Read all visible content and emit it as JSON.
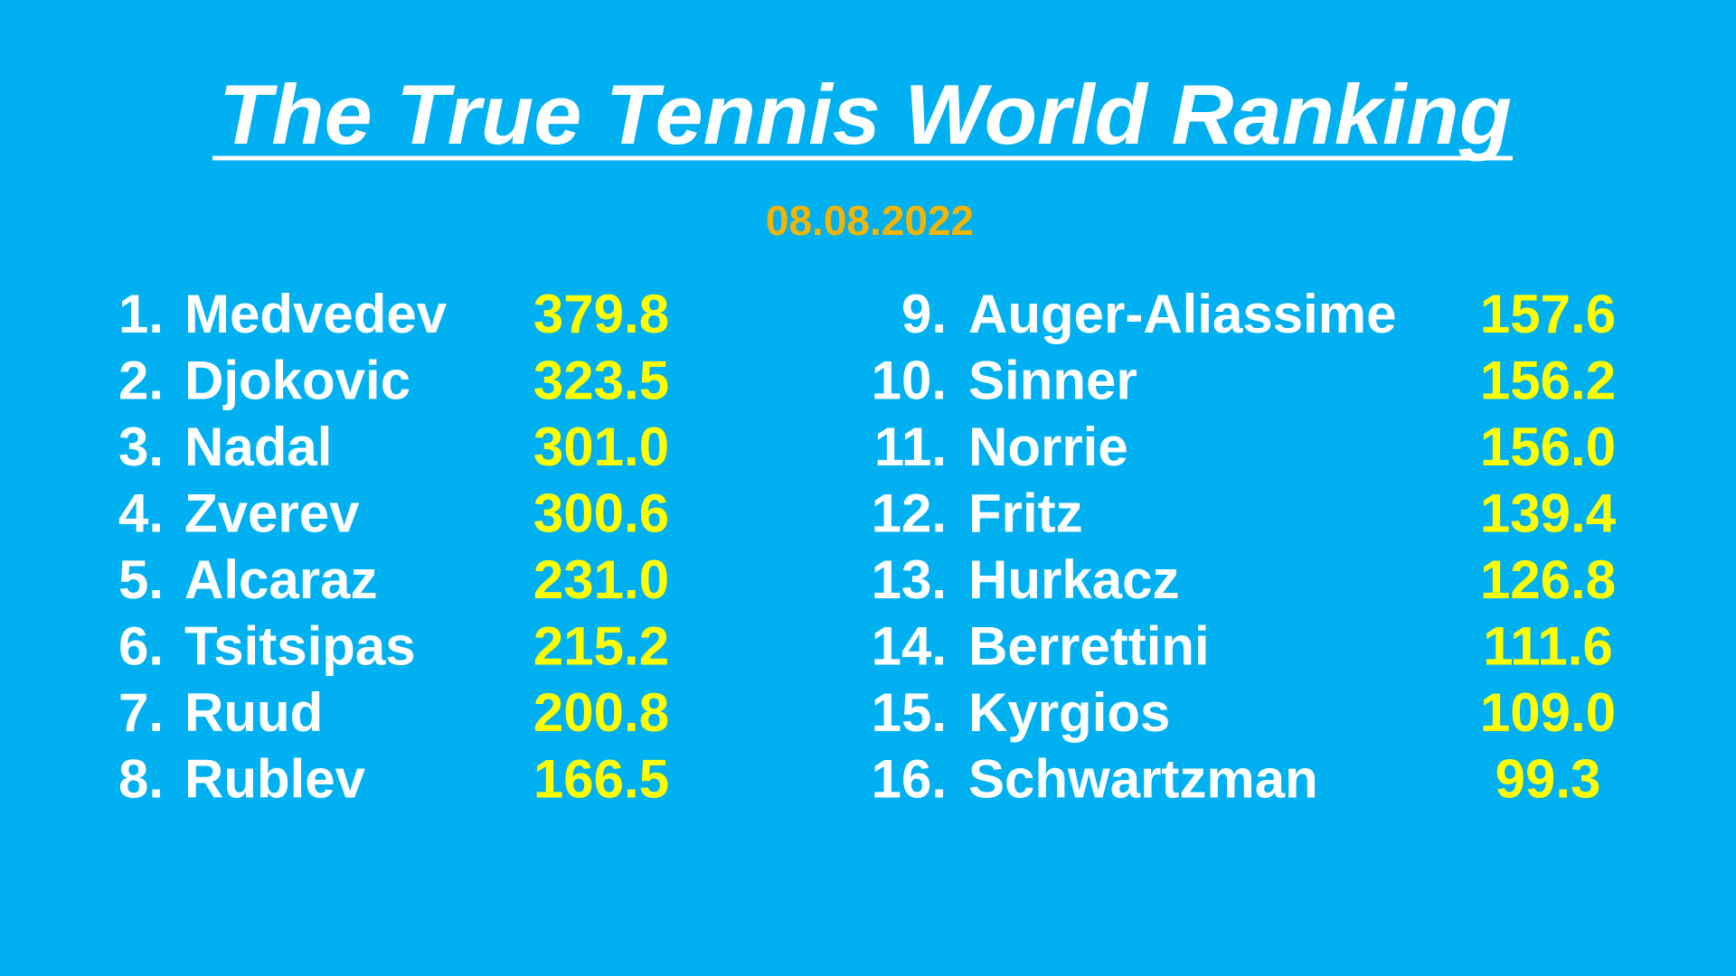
{
  "title": "The True Tennis World Ranking",
  "date": "08.08.2022",
  "rankings": [
    {
      "rank": "1.",
      "name": "Medvedev",
      "points": "379.8"
    },
    {
      "rank": "2.",
      "name": "Djokovic",
      "points": "323.5"
    },
    {
      "rank": "3.",
      "name": "Nadal",
      "points": "301.0"
    },
    {
      "rank": "4.",
      "name": "Zverev",
      "points": "300.6"
    },
    {
      "rank": "5.",
      "name": "Alcaraz",
      "points": "231.0"
    },
    {
      "rank": "6.",
      "name": "Tsitsipas",
      "points": "215.2"
    },
    {
      "rank": "7.",
      "name": "Ruud",
      "points": "200.8"
    },
    {
      "rank": "8.",
      "name": "Rublev",
      "points": "166.5"
    },
    {
      "rank": "9.",
      "name": "Auger-Aliassime",
      "points": "157.6"
    },
    {
      "rank": "10.",
      "name": "Sinner",
      "points": "156.2"
    },
    {
      "rank": "11.",
      "name": "Norrie",
      "points": "156.0"
    },
    {
      "rank": "12.",
      "name": "Fritz",
      "points": "139.4"
    },
    {
      "rank": "13.",
      "name": "Hurkacz",
      "points": "126.8"
    },
    {
      "rank": "14.",
      "name": "Berrettini",
      "points": "111.6"
    },
    {
      "rank": "15.",
      "name": "Kyrgios",
      "points": "109.0"
    },
    {
      "rank": "16.",
      "name": "Schwartzman",
      "points": "99.3"
    }
  ]
}
